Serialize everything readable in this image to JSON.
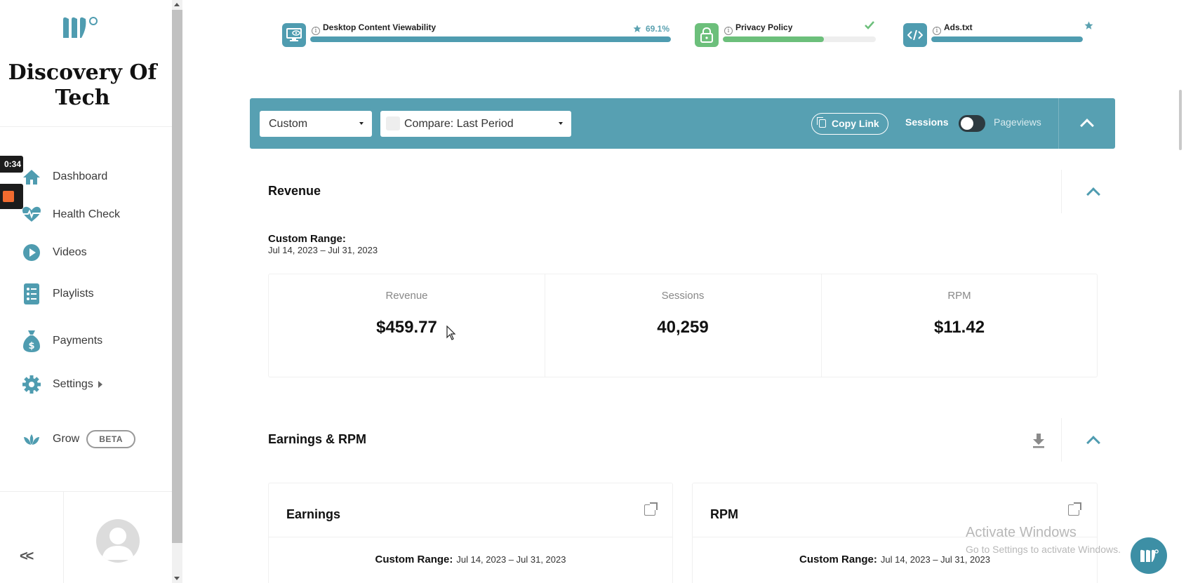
{
  "brand": {
    "name_line1": "Discovery Of",
    "name_line2": "Tech"
  },
  "recorder": {
    "time": "0:34"
  },
  "sidebar": {
    "items": [
      {
        "label": "Dashboard",
        "icon": "home-icon"
      },
      {
        "label": "Health Check",
        "icon": "heartbeat-icon"
      },
      {
        "label": "Videos",
        "icon": "play-icon"
      },
      {
        "label": "Playlists",
        "icon": "list-icon"
      },
      {
        "label": "Payments",
        "icon": "money-bag-icon"
      },
      {
        "label": "Settings",
        "icon": "gear-icon"
      },
      {
        "label": "Grow",
        "icon": "lotus-icon",
        "badge": "BETA"
      }
    ],
    "collapse": "<<"
  },
  "health": [
    {
      "title": "Desktop Content Viewability",
      "badge": "69.1%",
      "progress": 1.0,
      "color": "#4f9cb0"
    },
    {
      "title": "Privacy Policy",
      "progress": 0.66,
      "color": "#6cbf7b"
    },
    {
      "title": "Ads.txt",
      "progress": 1.0,
      "color": "#4f9cb0"
    }
  ],
  "toolbar": {
    "range_select": "Custom",
    "compare_select": "Compare: Last Period",
    "copy_link": "Copy Link",
    "sessions": "Sessions",
    "pageviews": "Pageviews"
  },
  "revenue": {
    "title": "Revenue",
    "range_label": "Custom Range:",
    "range_value": "Jul 14, 2023 – Jul 31, 2023",
    "stats": [
      {
        "label": "Revenue",
        "value": "$459.77"
      },
      {
        "label": "Sessions",
        "value": "40,259"
      },
      {
        "label": "RPM",
        "value": "$11.42"
      }
    ]
  },
  "earnings": {
    "title": "Earnings & RPM",
    "cards": [
      {
        "title": "Earnings",
        "range_label": "Custom Range:",
        "range_value": "Jul 14, 2023 – Jul 31, 2023"
      },
      {
        "title": "RPM",
        "range_label": "Custom Range:",
        "range_value": "Jul 14, 2023 – Jul 31, 2023"
      }
    ]
  },
  "watermark": {
    "line1": "Activate Windows",
    "line2": "Go to Settings to activate Windows."
  },
  "colors": {
    "accent": "#57a0b2",
    "green": "#6cbf7b"
  }
}
